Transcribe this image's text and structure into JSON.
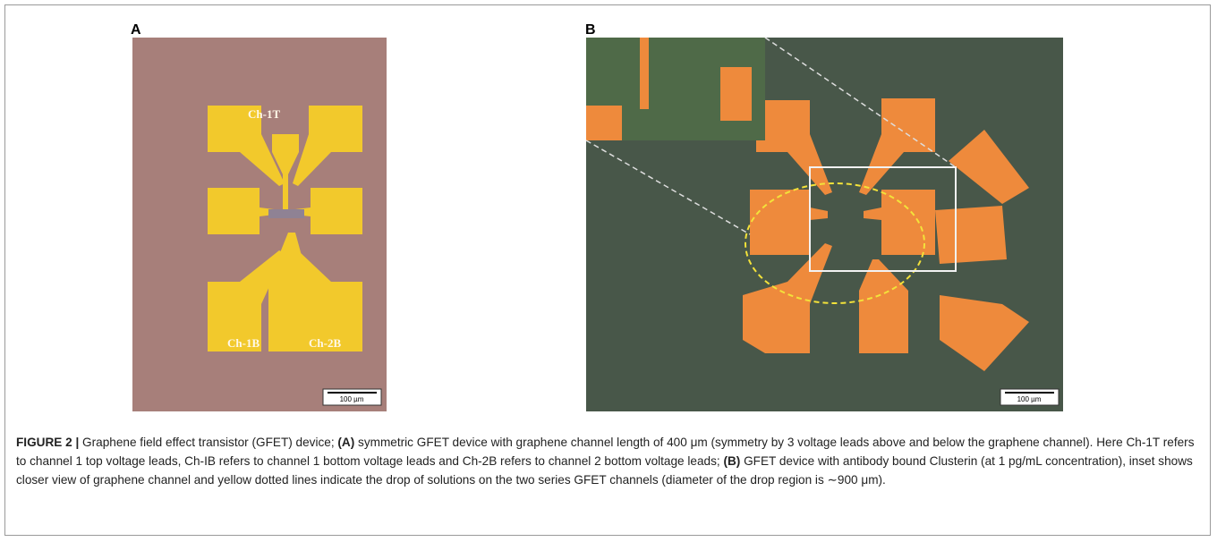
{
  "figure": {
    "panels": [
      {
        "label": "A",
        "annotations": [
          "Ch-1T",
          "Ch-1B",
          "Ch-2B"
        ],
        "scale_bar": "100 µm"
      },
      {
        "label": "B",
        "scale_bar": "100 µm"
      }
    ],
    "caption": {
      "label": "FIGURE 2 |",
      "parts": [
        " Graphene field effect transistor (GFET) device; ",
        "(A)",
        " symmetric GFET device with graphene channel length of 400 μm (symmetry by 3 voltage leads above and below the graphene channel). Here Ch-1T refers to channel 1 top voltage leads, Ch-IB refers to channel 1 bottom voltage leads and Ch-2B refers to channel 2 bottom voltage leads; ",
        "(B)",
        " GFET device with antibody bound Clusterin (at 1 pg/mL concentration), inset shows closer view of graphene channel and yellow dotted lines indicate the drop of solutions on the two series GFET channels (diameter of the drop region is ∼900 μm)."
      ]
    }
  }
}
